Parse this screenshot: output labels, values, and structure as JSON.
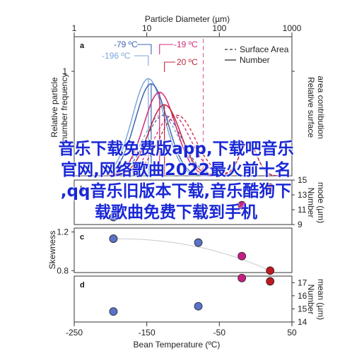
{
  "chart_data": [
    {
      "panel": "a",
      "type": "line",
      "x_top_label": "Particle Diameter (µm)",
      "x_top_ticks": [
        "1",
        "10",
        "100",
        "1000"
      ],
      "xscale": "log",
      "xlim": [
        1,
        1000
      ],
      "ylabel_left": "Relative particle number frequency",
      "ylabel_right": "Relative surface area contribution",
      "ytick_label": "1",
      "legend": {
        "dashed": "Surface Area",
        "solid": "Number",
        "placement": "top-right"
      },
      "temperature_labels": [
        "-79 ºC",
        "-196 ºC",
        "-19 ºC",
        "20 ºC"
      ],
      "series_colors": {
        "-196": "#7aa7d8",
        "-79": "#3f64b4",
        "-19": "#d2297a",
        "20": "#c32437"
      },
      "mode_diameters": {
        "-196": 10.5,
        "-79": 11.5,
        "-19": 15,
        "20": 17.5
      },
      "marker_line_diameter": 60
    },
    {
      "panel": "b",
      "type": "scatter",
      "ylabel": "Number mode (µm)",
      "yticks": [
        "9",
        "11",
        "13",
        "15"
      ],
      "ylim": [
        9,
        15
      ],
      "x": [
        -196,
        -79,
        -19,
        20
      ],
      "y": [
        10,
        11,
        11.6,
        14
      ]
    },
    {
      "panel": "c",
      "type": "scatter",
      "ylabel": "Skewness",
      "yticks": [
        "0.8",
        "1.2"
      ],
      "ylim": [
        0.78,
        1.24
      ],
      "x": [
        -196,
        -79,
        -19,
        20
      ],
      "y": [
        1.13,
        1.09,
        0.95,
        0.8
      ]
    },
    {
      "panel": "d",
      "type": "scatter",
      "ylabel": "Number mean (µm)",
      "yticks": [
        "14",
        "15",
        "16",
        "17"
      ],
      "ylim": [
        14,
        17.5
      ],
      "x": [
        -196,
        -79,
        -19,
        20
      ],
      "y": [
        14.8,
        15.2,
        17.35,
        17.1
      ]
    }
  ],
  "bottom_axis": {
    "label": "Bean Temperature (ºC)",
    "ticks": [
      "-250",
      "-150",
      "-50",
      "50"
    ],
    "xlim": [
      -250,
      50
    ]
  },
  "point_colors": [
    "#5a73c9",
    "#5a73c9",
    "#c81e84",
    "#c0181f"
  ],
  "overlay_text": [
    "音乐下载免费版app,下载吧音乐",
    "官网,网络歌曲2022最火前十名",
    ",qq音乐旧版本下载,音乐酷狗下",
    "载歌曲免费下载到手机"
  ]
}
